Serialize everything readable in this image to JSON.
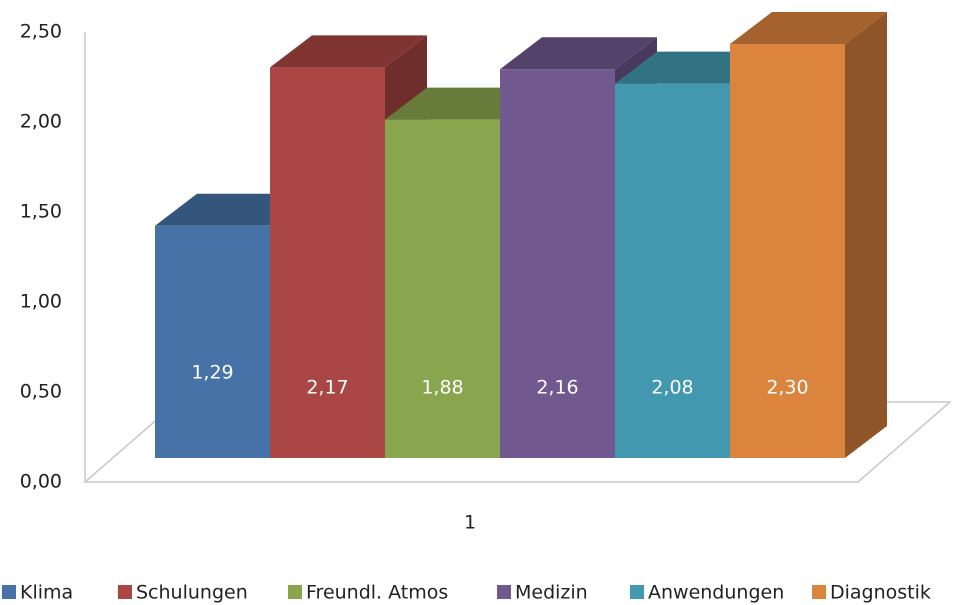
{
  "chart_data": {
    "type": "bar3d",
    "categories": [
      "1"
    ],
    "series": [
      {
        "name": "Klima",
        "color": "#4572a7",
        "values": [
          1.29
        ],
        "value_labels": [
          "1,29"
        ]
      },
      {
        "name": "Schulungen",
        "color": "#aa4643",
        "values": [
          2.17
        ],
        "value_labels": [
          "2,17"
        ]
      },
      {
        "name": "Freundl. Atmos",
        "color": "#89a54e",
        "values": [
          1.88
        ],
        "value_labels": [
          "1,88"
        ]
      },
      {
        "name": "Medizin",
        "color": "#71588f",
        "values": [
          2.16
        ],
        "value_labels": [
          "2,16"
        ]
      },
      {
        "name": "Anwendungen",
        "color": "#4198af",
        "values": [
          2.08
        ],
        "value_labels": [
          "2,08"
        ]
      },
      {
        "name": "Diagnostik",
        "color": "#db843d",
        "values": [
          2.3
        ],
        "value_labels": [
          "2,30"
        ]
      }
    ],
    "ylim": [
      0,
      2.5
    ],
    "yticks": [
      {
        "value": 0,
        "label": "0,00"
      },
      {
        "value": 0.5,
        "label": "0,50"
      },
      {
        "value": 1,
        "label": "1,00"
      },
      {
        "value": 1.5,
        "label": "1,50"
      },
      {
        "value": 2,
        "label": "2,00"
      },
      {
        "value": 2.5,
        "label": "2,50"
      }
    ],
    "legend": "bottom"
  }
}
